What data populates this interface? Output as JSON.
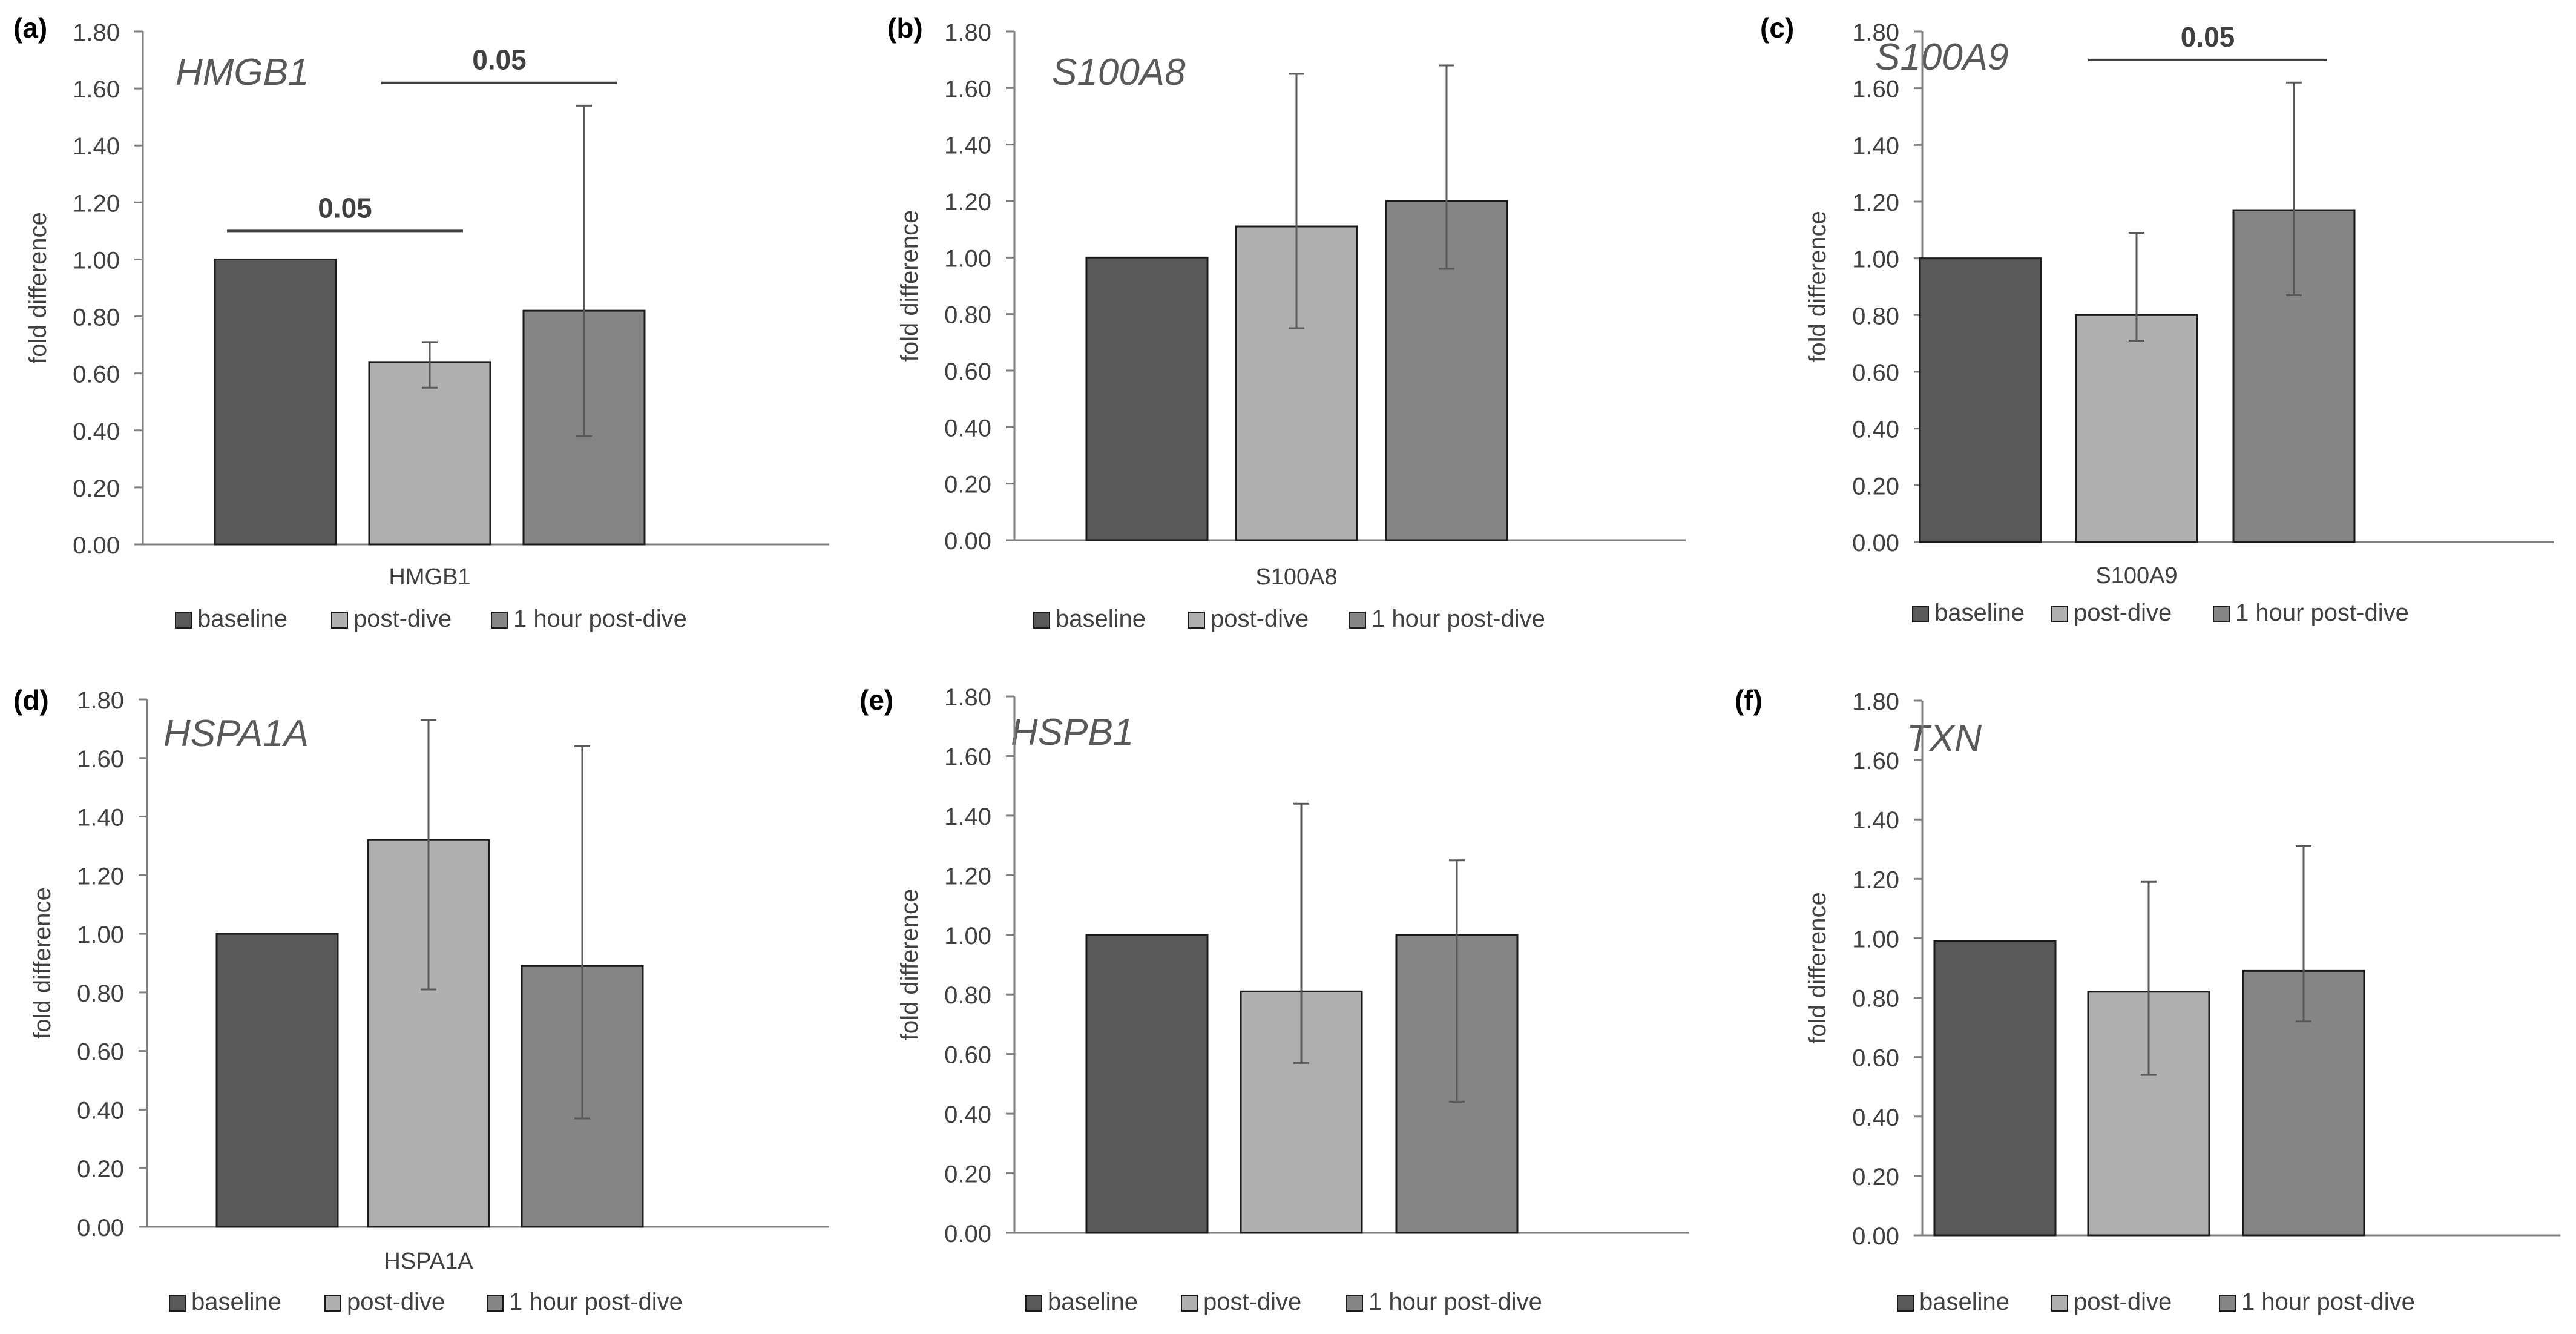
{
  "chart_data": [
    {
      "type": "bar",
      "panel_label": "(a)",
      "title": "HMGB1",
      "categories": [
        "HMGB1"
      ],
      "series": [
        {
          "name": "baseline",
          "values": [
            1.0
          ],
          "error_low": [
            1.0
          ],
          "error_high": [
            1.0
          ]
        },
        {
          "name": "post-dive",
          "values": [
            0.64
          ],
          "error_low": [
            0.55
          ],
          "error_high": [
            0.71
          ]
        },
        {
          "name": "1 hour post-dive",
          "values": [
            0.82
          ],
          "error_low": [
            0.38
          ],
          "error_high": [
            1.54
          ]
        }
      ],
      "ylabel": "fold difference",
      "ylim": [
        0,
        1.8
      ],
      "yticks": [
        "0.00",
        "0.20",
        "0.40",
        "0.60",
        "0.80",
        "1.00",
        "1.20",
        "1.40",
        "1.60",
        "1.80"
      ],
      "significance": [
        {
          "from": "baseline",
          "to": "post-dive",
          "label": "0.05",
          "y": 1.1
        },
        {
          "from": "post-dive",
          "to": "1 hour post-dive",
          "label": "0.05",
          "y": 1.62
        }
      ],
      "legend": [
        "baseline",
        "post-dive",
        "1 hour post-dive"
      ]
    },
    {
      "type": "bar",
      "panel_label": "(b)",
      "title": "S100A8",
      "categories": [
        "S100A8"
      ],
      "series": [
        {
          "name": "baseline",
          "values": [
            1.0
          ],
          "error_low": [
            1.0
          ],
          "error_high": [
            1.0
          ]
        },
        {
          "name": "post-dive",
          "values": [
            1.11
          ],
          "error_low": [
            0.75
          ],
          "error_high": [
            1.65
          ]
        },
        {
          "name": "1 hour post-dive",
          "values": [
            1.2
          ],
          "error_low": [
            0.96
          ],
          "error_high": [
            1.68
          ]
        }
      ],
      "ylabel": "fold difference",
      "ylim": [
        0,
        1.8
      ],
      "yticks": [
        "0.00",
        "0.20",
        "0.40",
        "0.60",
        "0.80",
        "1.00",
        "1.20",
        "1.40",
        "1.60",
        "1.80"
      ],
      "significance": [],
      "legend": [
        "baseline",
        "post-dive",
        "1 hour post-dive"
      ]
    },
    {
      "type": "bar",
      "panel_label": "(c)",
      "title": "S100A9",
      "categories": [
        "S100A9"
      ],
      "series": [
        {
          "name": "baseline",
          "values": [
            1.0
          ],
          "error_low": [
            1.0
          ],
          "error_high": [
            1.0
          ]
        },
        {
          "name": "post-dive",
          "values": [
            0.8
          ],
          "error_low": [
            0.71
          ],
          "error_high": [
            1.09
          ]
        },
        {
          "name": "1 hour post-dive",
          "values": [
            1.17
          ],
          "error_low": [
            0.87
          ],
          "error_high": [
            1.62
          ]
        }
      ],
      "ylabel": "fold difference",
      "ylim": [
        0,
        1.8
      ],
      "yticks": [
        "0.00",
        "0.20",
        "0.40",
        "0.60",
        "0.80",
        "1.00",
        "1.20",
        "1.40",
        "1.60",
        "1.80"
      ],
      "significance": [
        {
          "from": "post-dive",
          "to": "1 hour post-dive",
          "label": "0.05",
          "y": 1.7
        }
      ],
      "legend": [
        "baseline",
        "post-dive",
        "1 hour post-dive"
      ]
    },
    {
      "type": "bar",
      "panel_label": "(d)",
      "title": "HSPA1A",
      "categories": [
        "HSPA1A"
      ],
      "series": [
        {
          "name": "baseline",
          "values": [
            1.0
          ],
          "error_low": [
            1.0
          ],
          "error_high": [
            1.0
          ]
        },
        {
          "name": "post-dive",
          "values": [
            1.32
          ],
          "error_low": [
            0.81
          ],
          "error_high": [
            1.73
          ]
        },
        {
          "name": "1 hour post-dive",
          "values": [
            0.89
          ],
          "error_low": [
            0.37
          ],
          "error_high": [
            1.64
          ]
        }
      ],
      "ylabel": "fold difference",
      "ylim": [
        0,
        1.8
      ],
      "yticks": [
        "0.00",
        "0.20",
        "0.40",
        "0.60",
        "0.80",
        "1.00",
        "1.20",
        "1.40",
        "1.60",
        "1.80"
      ],
      "significance": [],
      "legend": [
        "baseline",
        "post-dive",
        "1 hour post-dive"
      ]
    },
    {
      "type": "bar",
      "panel_label": "(e)",
      "title": "HSPB1",
      "categories": [
        ""
      ],
      "series": [
        {
          "name": "baseline",
          "values": [
            1.0
          ],
          "error_low": [
            1.0
          ],
          "error_high": [
            1.0
          ]
        },
        {
          "name": "post-dive",
          "values": [
            0.81
          ],
          "error_low": [
            0.57
          ],
          "error_high": [
            1.44
          ]
        },
        {
          "name": "1 hour post-dive",
          "values": [
            1.0
          ],
          "error_low": [
            0.44
          ],
          "error_high": [
            1.25
          ]
        }
      ],
      "ylabel": "fold difference",
      "ylim": [
        0,
        1.8
      ],
      "yticks": [
        "0.00",
        "0.20",
        "0.40",
        "0.60",
        "0.80",
        "1.00",
        "1.20",
        "1.40",
        "1.60",
        "1.80"
      ],
      "significance": [],
      "legend": [
        "baseline",
        "post-dive",
        "1 hour post-dive"
      ]
    },
    {
      "type": "bar",
      "panel_label": "(f)",
      "title": "TXN",
      "categories": [
        ""
      ],
      "series": [
        {
          "name": "baseline",
          "values": [
            0.99
          ],
          "error_low": [
            0.99
          ],
          "error_high": [
            0.99
          ]
        },
        {
          "name": "post-dive",
          "values": [
            0.82
          ],
          "error_low": [
            0.54
          ],
          "error_high": [
            1.19
          ]
        },
        {
          "name": "1 hour post-dive",
          "values": [
            0.89
          ],
          "error_low": [
            0.72
          ],
          "error_high": [
            1.31
          ]
        }
      ],
      "ylabel": "fold difference",
      "ylim": [
        0,
        1.8
      ],
      "yticks": [
        "0.00",
        "0.20",
        "0.40",
        "0.60",
        "0.80",
        "1.00",
        "1.20",
        "1.40",
        "1.60",
        "1.80"
      ],
      "significance": [],
      "legend": [
        "baseline",
        "post-dive",
        "1 hour post-dive"
      ]
    }
  ],
  "colors": {
    "baseline": "#595959",
    "post-dive": "#b0b0b0",
    "1 hour post-dive": "#858585",
    "bar_stroke": "#1a1a1a",
    "axis": "#7f7f7f",
    "text": "#404040",
    "title": "#595959",
    "error_bar": "#595959",
    "bracket": "#404040"
  }
}
